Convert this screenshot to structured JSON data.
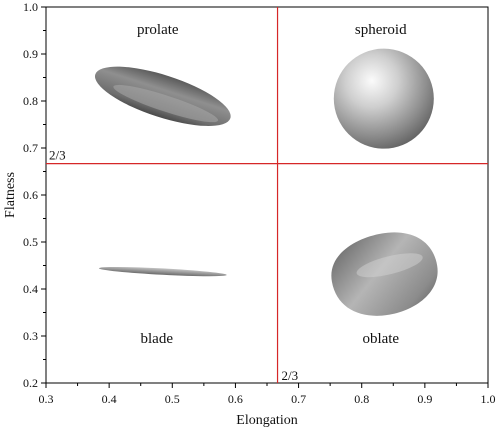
{
  "chart_data": {
    "type": "scatter",
    "title": "",
    "xlabel": "Elongation",
    "ylabel": "Flatness",
    "xlim": [
      0.3,
      1.0
    ],
    "ylim": [
      0.2,
      1.0
    ],
    "xticks": [
      "0.3",
      "0.4",
      "0.5",
      "0.6",
      "0.7",
      "0.8",
      "0.9",
      "1.0"
    ],
    "yticks": [
      "0.2",
      "0.3",
      "0.4",
      "0.5",
      "0.6",
      "0.7",
      "0.8",
      "0.9",
      "1.0"
    ],
    "grid": false,
    "thresholds": [
      {
        "axis": "x",
        "value": 0.6667,
        "label": "2/3",
        "color": "#d62728"
      },
      {
        "axis": "y",
        "value": 0.6667,
        "label": "2/3",
        "color": "#d62728"
      }
    ],
    "regions": [
      {
        "name": "prolate"
      },
      {
        "name": "spheroid"
      },
      {
        "name": "blade"
      },
      {
        "name": "oblate"
      }
    ],
    "illustrations": [
      {
        "name": "prolate-shape",
        "x": 0.485,
        "y": 0.81
      },
      {
        "name": "spheroid-shape",
        "x": 0.835,
        "y": 0.805
      },
      {
        "name": "blade-shape",
        "x": 0.485,
        "y": 0.437
      },
      {
        "name": "oblate-shape",
        "x": 0.835,
        "y": 0.43
      }
    ]
  }
}
